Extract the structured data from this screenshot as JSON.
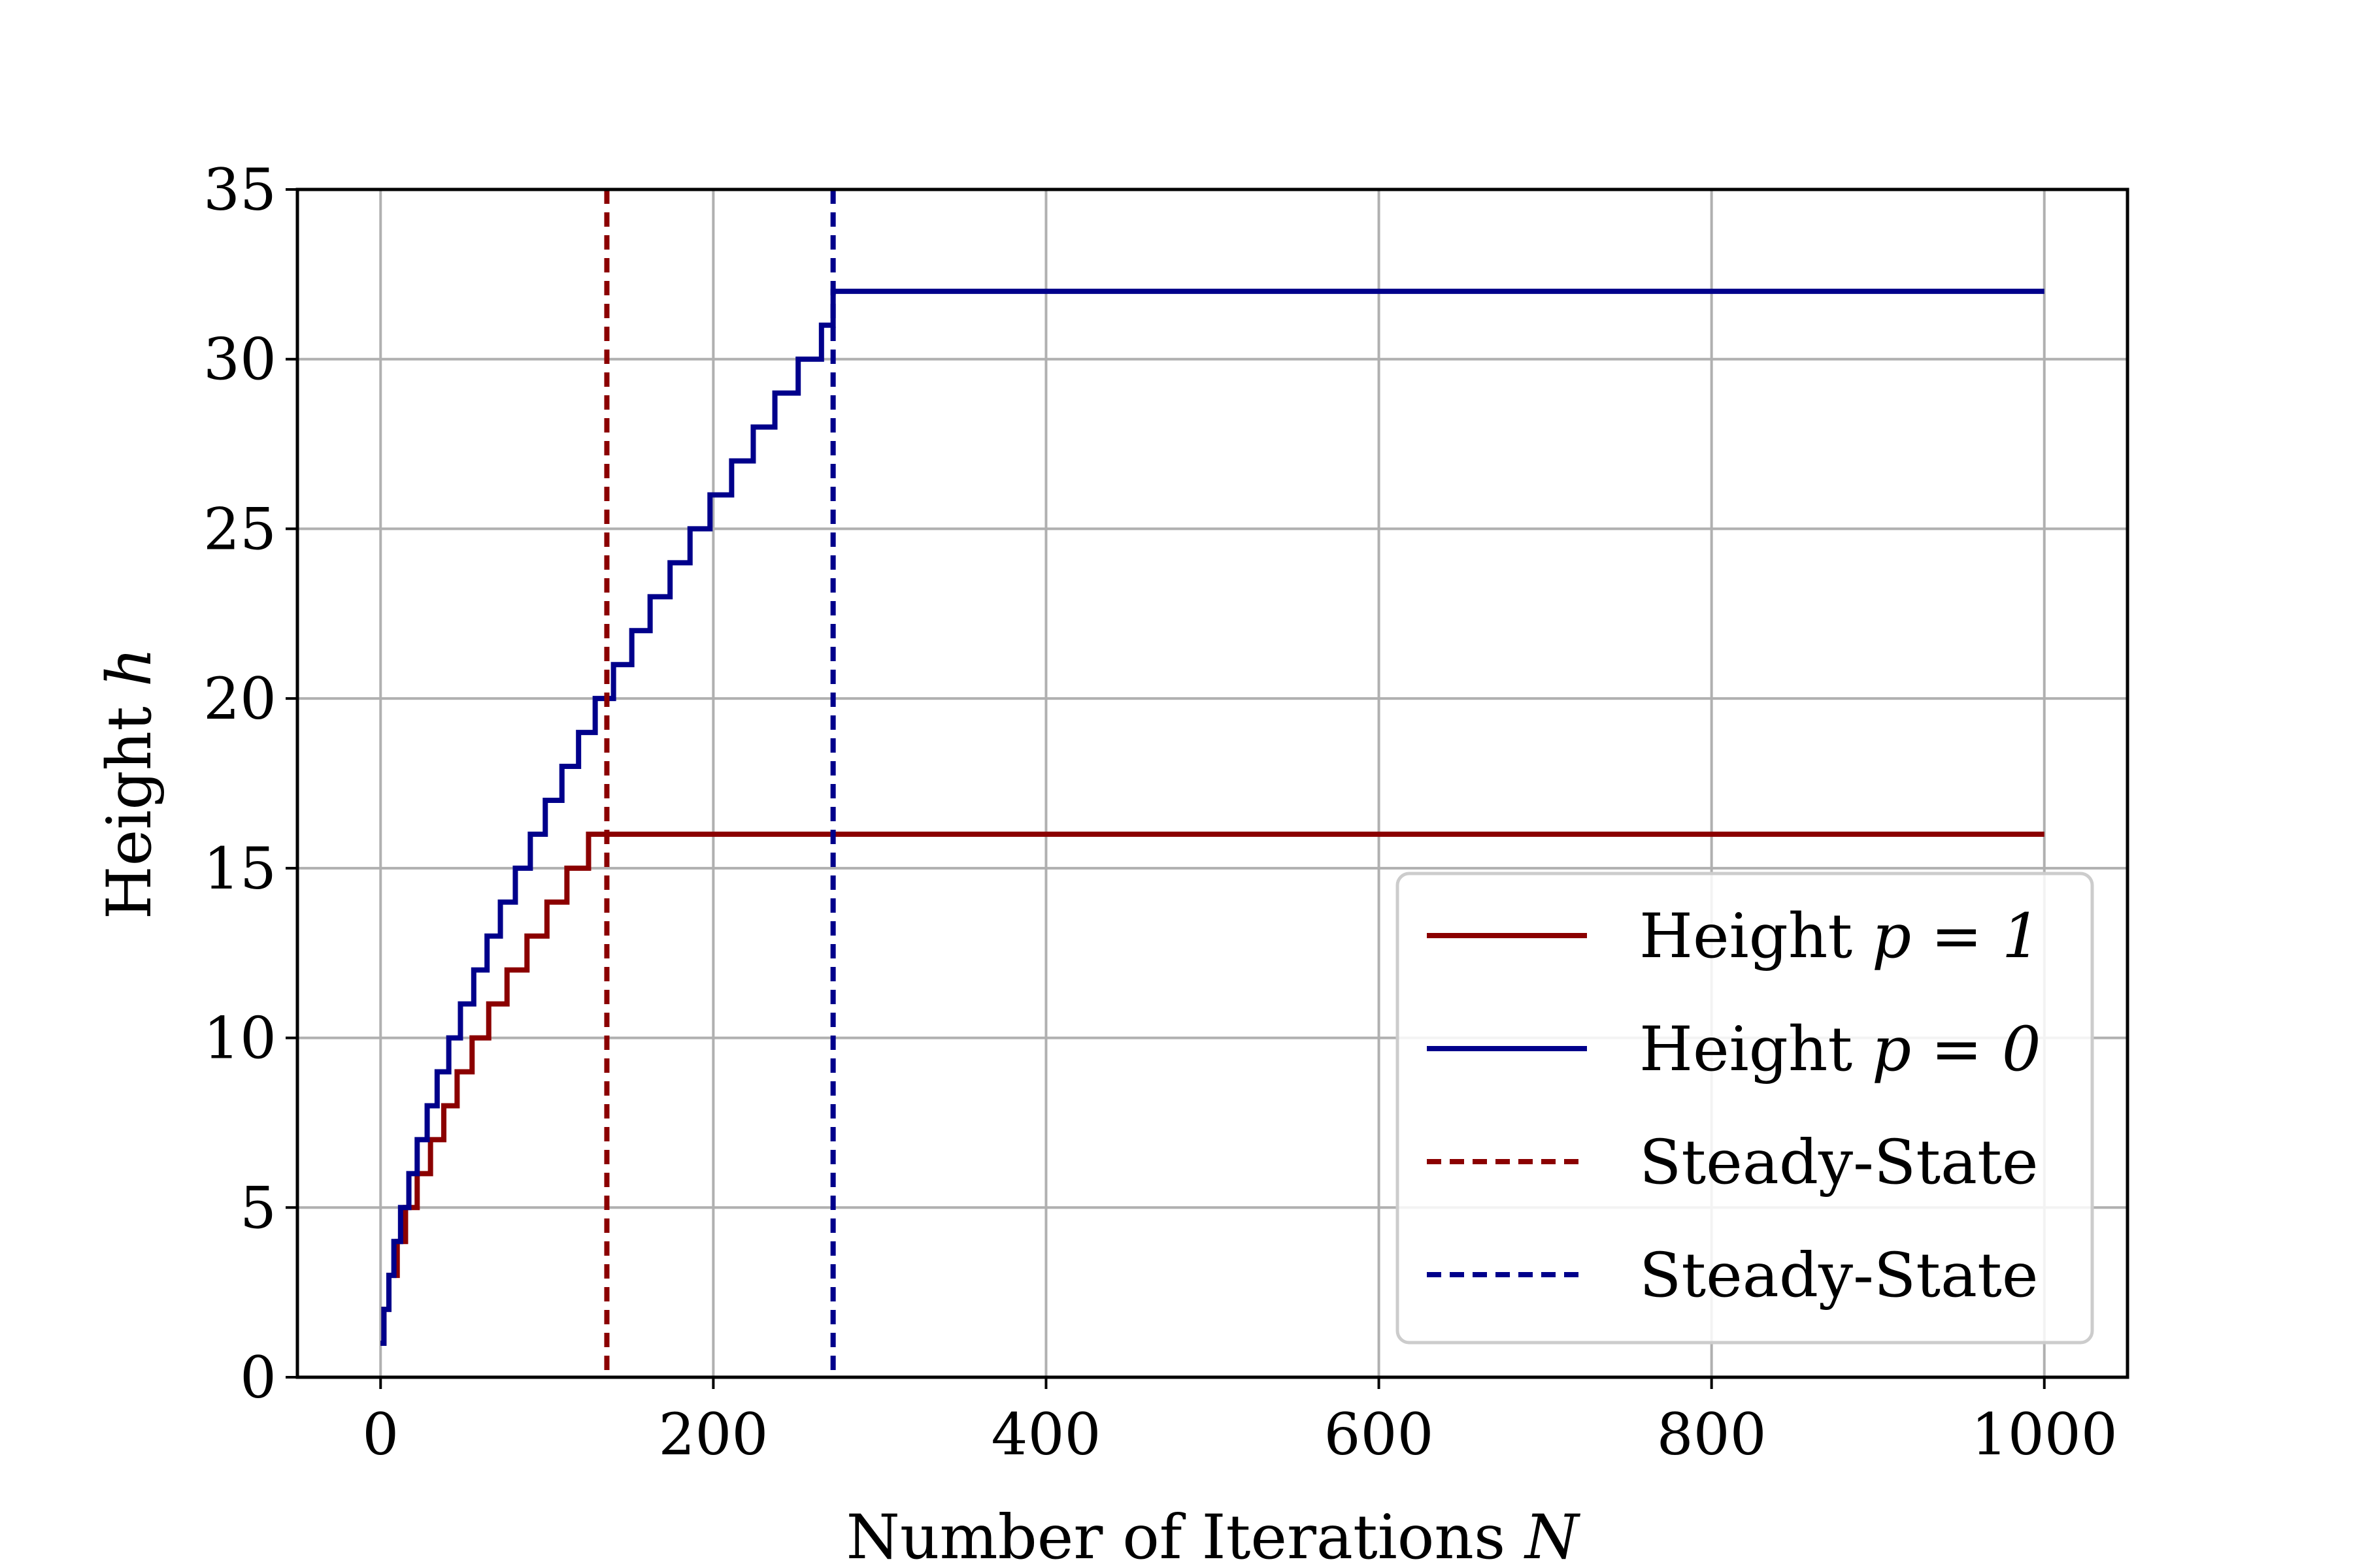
{
  "chart_data": {
    "type": "line",
    "xlabel": "Number of Iterations",
    "xlabel_var": "N",
    "ylabel": "Height",
    "ylabel_var": "h",
    "xlim": [
      -50,
      1050
    ],
    "ylim": [
      0,
      35
    ],
    "xticks": [
      0,
      200,
      400,
      600,
      800,
      1000
    ],
    "yticks": [
      0,
      5,
      10,
      15,
      20,
      25,
      30,
      35
    ],
    "grid": true,
    "legend_position": "lower-right",
    "series": [
      {
        "label": "Height",
        "param": "p = 1",
        "color": "#8b0000",
        "style": "solid",
        "step": "post",
        "x": [
          0,
          2,
          5,
          10,
          15,
          22,
          30,
          38,
          46,
          55,
          65,
          76,
          88,
          100,
          112,
          125,
          136,
          1000
        ],
        "y": [
          1,
          2,
          3,
          4,
          5,
          6,
          7,
          8,
          9,
          10,
          11,
          12,
          13,
          14,
          15,
          16,
          16,
          16
        ]
      },
      {
        "label": "Height",
        "param": "p = 0",
        "color": "#00008b",
        "style": "solid",
        "step": "post",
        "x": [
          0,
          2,
          5,
          8,
          12,
          17,
          22,
          28,
          34,
          41,
          48,
          56,
          64,
          72,
          81,
          90,
          99,
          109,
          119,
          129,
          140,
          151,
          162,
          174,
          186,
          198,
          211,
          224,
          237,
          251,
          265,
          272,
          1000
        ],
        "y": [
          1,
          2,
          3,
          4,
          5,
          6,
          7,
          8,
          9,
          10,
          11,
          12,
          13,
          14,
          15,
          16,
          17,
          18,
          19,
          20,
          21,
          22,
          23,
          24,
          25,
          26,
          27,
          28,
          29,
          30,
          31,
          32,
          32
        ]
      },
      {
        "label": "Steady-State",
        "color": "#8b0000",
        "style": "dashed",
        "vline_x": 136
      },
      {
        "label": "Steady-State",
        "color": "#00008b",
        "style": "dashed",
        "vline_x": 272
      }
    ]
  }
}
